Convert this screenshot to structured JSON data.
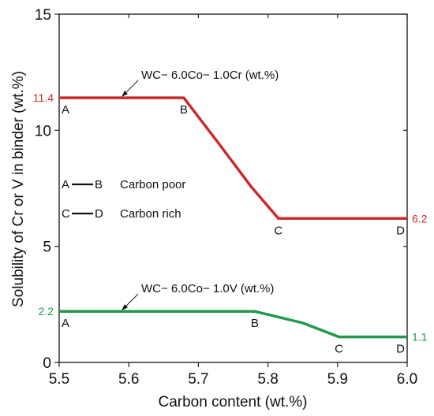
{
  "chart_data": {
    "type": "line",
    "xlabel": "Carbon content (wt.%)",
    "ylabel": "Solubility of Cr or V in binder (wt.%)",
    "xlim": [
      5.5,
      6.0
    ],
    "ylim": [
      0,
      15
    ],
    "xticks": [
      "5.5",
      "5.6",
      "5.7",
      "5.8",
      "5.9",
      "6.0"
    ],
    "yticks": [
      "0",
      "5",
      "10",
      "15"
    ],
    "grid": false,
    "series": [
      {
        "name": "WC− 6.0Co− 1.0Cr (wt.%)",
        "color": "#cc2a2a",
        "x": [
          5.5,
          5.679,
          5.73,
          5.775,
          5.815,
          6.0
        ],
        "y": [
          11.4,
          11.4,
          9.4,
          7.6,
          6.2,
          6.2
        ],
        "start_value_label": "11.4",
        "end_value_label": "6.2",
        "point_labels": [
          {
            "label": "A",
            "x": 5.5,
            "y": 11.4
          },
          {
            "label": "B",
            "x": 5.679,
            "y": 11.4
          },
          {
            "label": "C",
            "x": 5.815,
            "y": 6.2
          },
          {
            "label": "D",
            "x": 6.0,
            "y": 6.2
          }
        ]
      },
      {
        "name": "WC− 6.0Co− 1.0V (wt.%)",
        "color": "#1f9a4a",
        "x": [
          5.5,
          5.781,
          5.85,
          5.902,
          6.0
        ],
        "y": [
          2.2,
          2.2,
          1.7,
          1.1,
          1.1
        ],
        "start_value_label": "2.2",
        "end_value_label": "1.1",
        "point_labels": [
          {
            "label": "A",
            "x": 5.5,
            "y": 2.2
          },
          {
            "label": "B",
            "x": 5.781,
            "y": 2.2
          },
          {
            "label": "C",
            "x": 5.902,
            "y": 1.1
          },
          {
            "label": "D",
            "x": 6.0,
            "y": 1.1
          }
        ]
      }
    ],
    "legend_placement": "left",
    "legend": [
      {
        "from": "A",
        "to": "B",
        "text": "Carbon poor"
      },
      {
        "from": "C",
        "to": "D",
        "text": "Carbon rich"
      }
    ]
  }
}
